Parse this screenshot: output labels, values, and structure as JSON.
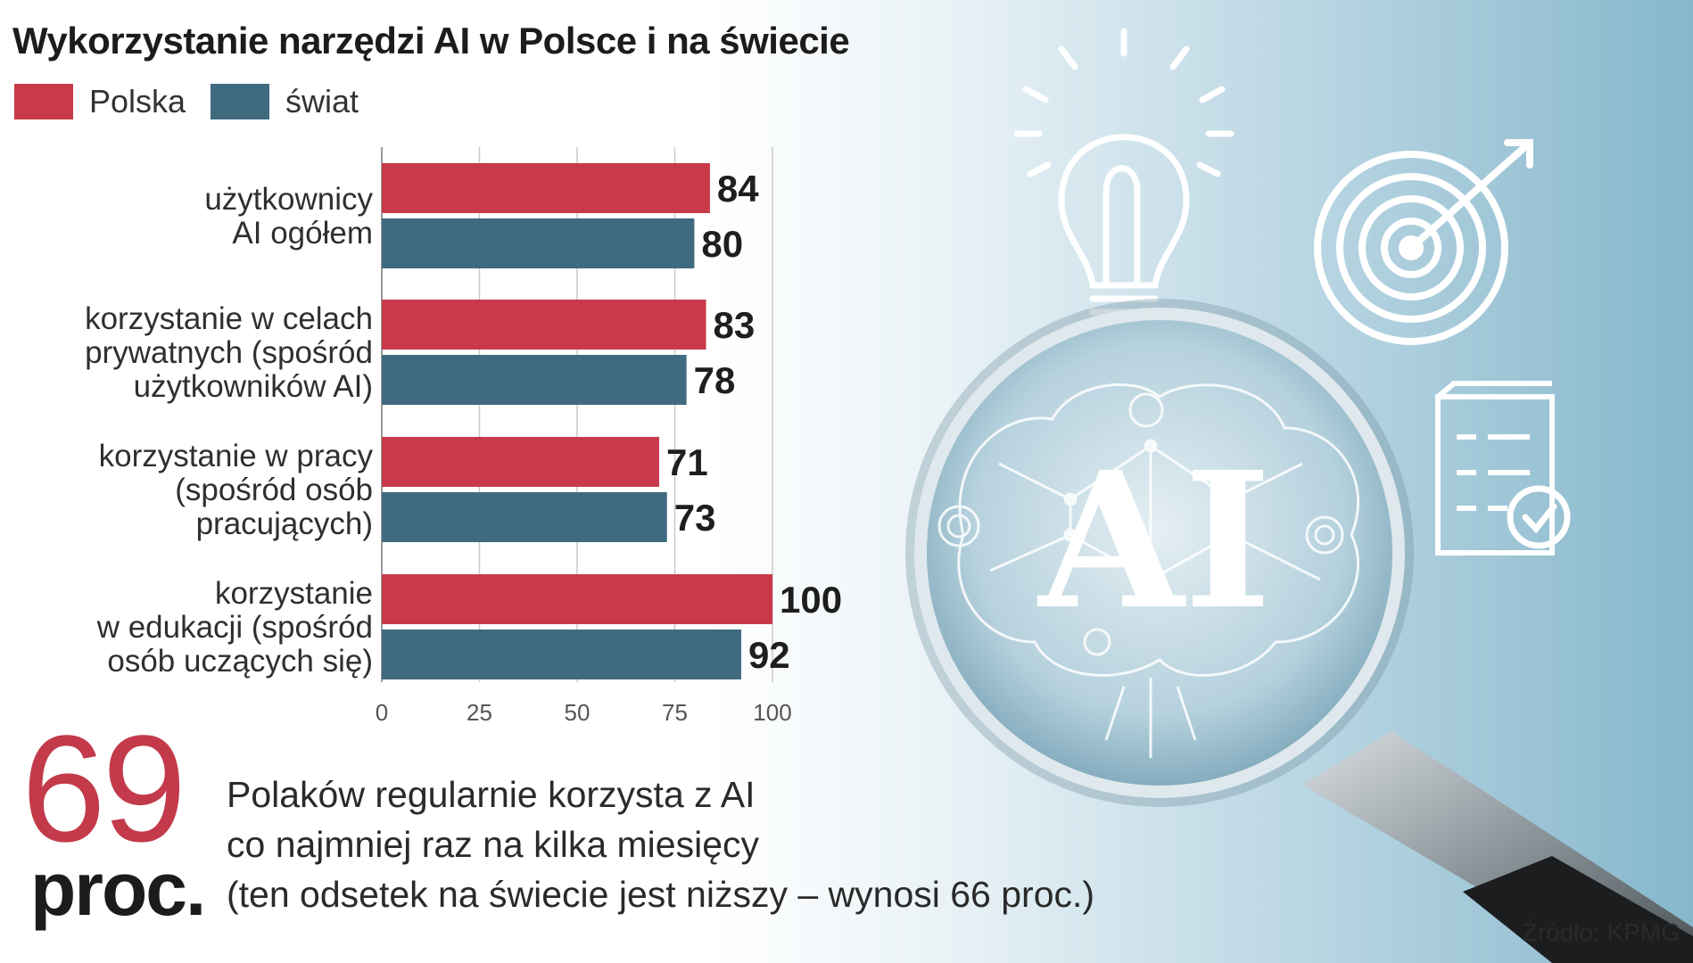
{
  "title": "Wykorzystanie narzędzi AI w Polsce i na świecie",
  "legend": [
    {
      "label": "Polska",
      "color": "#c83a4a"
    },
    {
      "label": "świat",
      "color": "#3f6a80"
    }
  ],
  "chart_data": {
    "type": "bar",
    "orientation": "horizontal",
    "title": "Wykorzystanie narzędzi AI w Polsce i na świecie",
    "categories": [
      [
        "użytkownicy",
        "AI ogółem"
      ],
      [
        "korzystanie w celach",
        "prywatnych (spośród",
        "użytkowników AI)"
      ],
      [
        "korzystanie w pracy",
        "(spośród osób",
        "pracujących)"
      ],
      [
        "korzystanie",
        "w edukacji (spośród",
        "osób uczących się)"
      ]
    ],
    "series": [
      {
        "name": "Polska",
        "color": "#c83a4a",
        "values": [
          84,
          83,
          71,
          100
        ]
      },
      {
        "name": "świat",
        "color": "#3f6a80",
        "values": [
          80,
          78,
          73,
          92
        ]
      }
    ],
    "xlim": [
      0,
      100
    ],
    "xticks": [
      0,
      25,
      50,
      75,
      100
    ],
    "xlabel": "",
    "ylabel": "",
    "grid": true
  },
  "highlight": {
    "number": "69",
    "unit": "proc.",
    "lines": [
      "Polaków regularnie korzysta z AI",
      "co najmniej raz na kilka miesięcy",
      "(ten odsetek na świecie jest niższy – wynosi 66 proc.)"
    ]
  },
  "source": "Źródło: KPMG",
  "icons": [
    "lightbulb-icon",
    "target-icon",
    "checklist-icon",
    "magnifier-icon",
    "brain-icon"
  ],
  "illustration_text": "AI"
}
